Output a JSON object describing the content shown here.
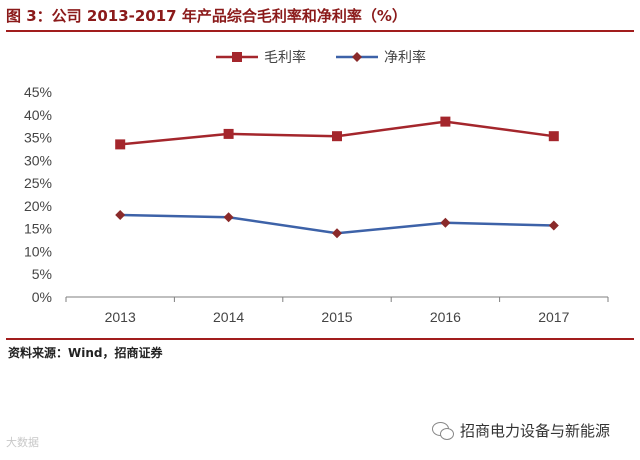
{
  "figure": {
    "title": "图 3：公司 2013-2017 年产品综合毛利率和净利率（%）",
    "source": "资料来源：Wind，招商证券"
  },
  "watermarks": {
    "left": "大数据",
    "right": "招商电力设备与新能源",
    "right_icon": "wechat-icon"
  },
  "chart_data": {
    "type": "line",
    "title": "图 3：公司 2013-2017 年产品综合毛利率和净利率（%）",
    "xlabel": "",
    "ylabel": "",
    "x": [
      "2013",
      "2014",
      "2015",
      "2016",
      "2017"
    ],
    "ylim": [
      0,
      45
    ],
    "yticks": [
      "0%",
      "5%",
      "10%",
      "15%",
      "20%",
      "25%",
      "30%",
      "35%",
      "40%",
      "45%"
    ],
    "grid": false,
    "legend_position": "top-center",
    "series": [
      {
        "name": "毛利率",
        "values": [
          33.5,
          35.8,
          35.3,
          38.5,
          35.3
        ],
        "color": "#a4262c",
        "marker": "square"
      },
      {
        "name": "净利率",
        "values": [
          18.0,
          17.5,
          14.0,
          16.3,
          15.7
        ],
        "color": "#3d62a8",
        "marker": "diamond",
        "marker_color": "#8a2a2a"
      }
    ]
  }
}
